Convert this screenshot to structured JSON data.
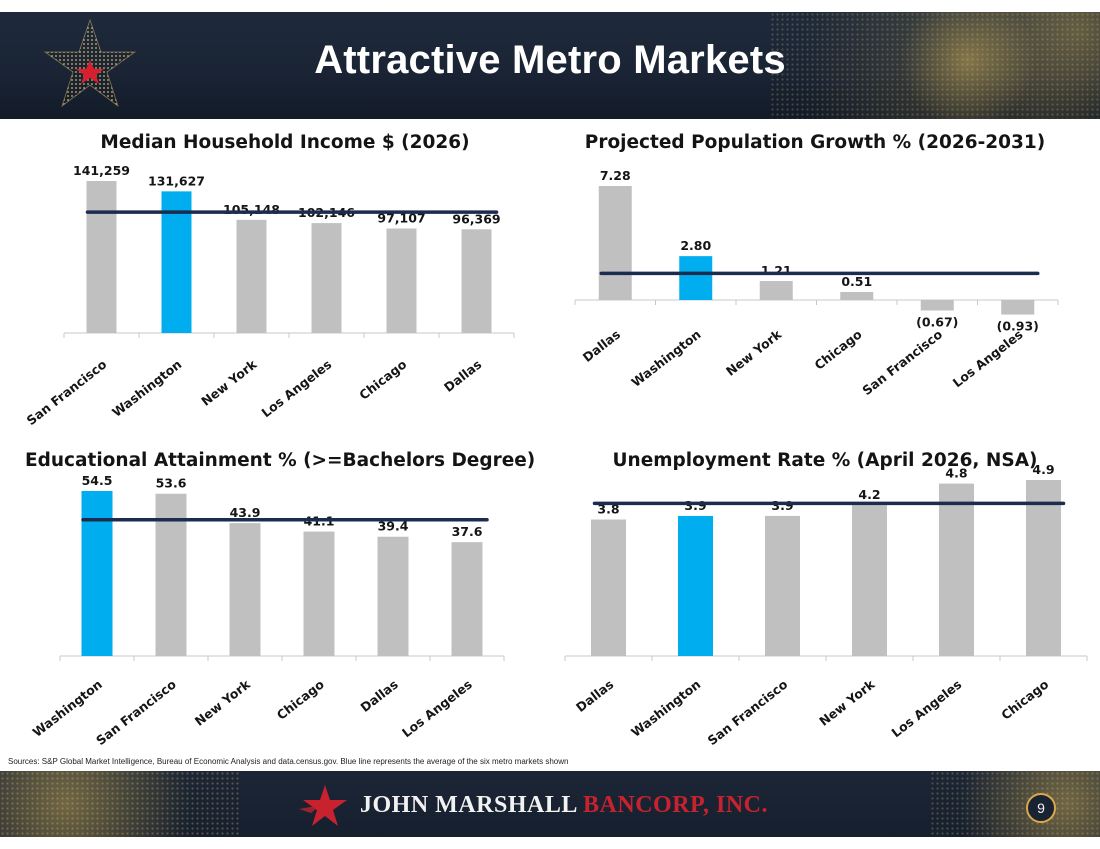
{
  "slide": {
    "title": "Attractive Metro Markets",
    "sources": "Sources:  S&P Global Market Intelligence, Bureau of Economic Analysis and data.census.gov. Blue line represents the average of the six metro markets shown",
    "page_number": "9"
  },
  "footer": {
    "brand_part1": "JOHN MARSHALL",
    "brand_part2": "BANCORP, INC."
  },
  "colors": {
    "header_bg": "#1e2a3b",
    "bar_gray": "#c0c0c0",
    "bar_highlight": "#00aeef",
    "average_line": "#1b2c4f",
    "brand_red": "#c8222e",
    "gold": "#d8a94a"
  },
  "icons": [
    "gold-star-logo-icon",
    "red-star-brand-icon"
  ],
  "chart_data": [
    {
      "type": "bar",
      "title": "Median Household Income $ (2026)",
      "categories": [
        "San Francisco",
        "Washington",
        "New York",
        "Los Angeles",
        "Chicago",
        "Dallas"
      ],
      "values": [
        141259,
        131627,
        105148,
        102146,
        97107,
        96369
      ],
      "labels": [
        "141,259",
        "131,627",
        "105,148",
        "102,146",
        "97,107",
        "96,369"
      ],
      "highlight": "Washington",
      "average_line": true,
      "ylim": [
        0,
        150000
      ]
    },
    {
      "type": "bar",
      "title": "Projected Population Growth % (2026-2031)",
      "categories": [
        "Dallas",
        "Washington",
        "New York",
        "Chicago",
        "San Francisco",
        "Los Angeles"
      ],
      "values": [
        7.28,
        2.8,
        1.21,
        0.51,
        -0.67,
        -0.93
      ],
      "labels": [
        "7.28",
        "2.80",
        "1.21",
        "0.51",
        "(0.67)",
        "(0.93)"
      ],
      "highlight": "Washington",
      "average_line": true,
      "ylim": [
        -1.5,
        8
      ]
    },
    {
      "type": "bar",
      "title": "Educational Attainment % (>=Bachelors Degree)",
      "categories": [
        "Washington",
        "San Francisco",
        "New York",
        "Chicago",
        "Dallas",
        "Los Angeles"
      ],
      "values": [
        54.5,
        53.6,
        43.9,
        41.1,
        39.4,
        37.6
      ],
      "labels": [
        "54.5",
        "53.6",
        "43.9",
        "41.1",
        "39.4",
        "37.6"
      ],
      "highlight": "Washington",
      "average_line": true,
      "ylim": [
        0,
        60
      ]
    },
    {
      "type": "bar",
      "title": "Unemployment Rate % (April 2026, NSA)",
      "categories": [
        "Dallas",
        "Washington",
        "San Francisco",
        "New York",
        "Los Angeles",
        "Chicago"
      ],
      "values": [
        3.8,
        3.9,
        3.9,
        4.2,
        4.8,
        4.9
      ],
      "labels": [
        "3.8",
        "3.9",
        "3.9",
        "4.2",
        "4.8",
        "4.9"
      ],
      "highlight": "Washington",
      "average_line": true,
      "ylim": [
        0,
        5.3
      ]
    }
  ]
}
